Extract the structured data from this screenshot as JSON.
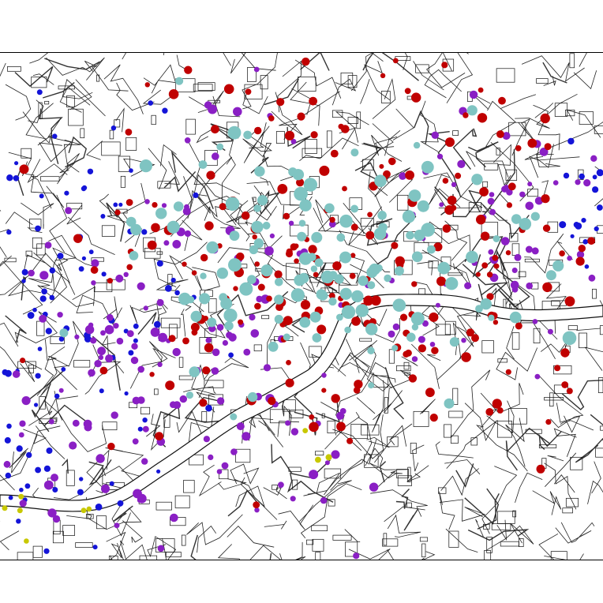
{
  "map": {
    "title": "",
    "colors": {
      "background": "#ffffff",
      "roads": "#222222",
      "river_fill": "#ffffff",
      "teal": "#7fc4c2",
      "red": "#c00000",
      "purple": "#8a1fc4",
      "blue": "#1414d8",
      "yellow": "#c8c800"
    },
    "legend": "none",
    "point_categories": [
      "teal",
      "red",
      "purple",
      "blue",
      "yellow"
    ]
  }
}
